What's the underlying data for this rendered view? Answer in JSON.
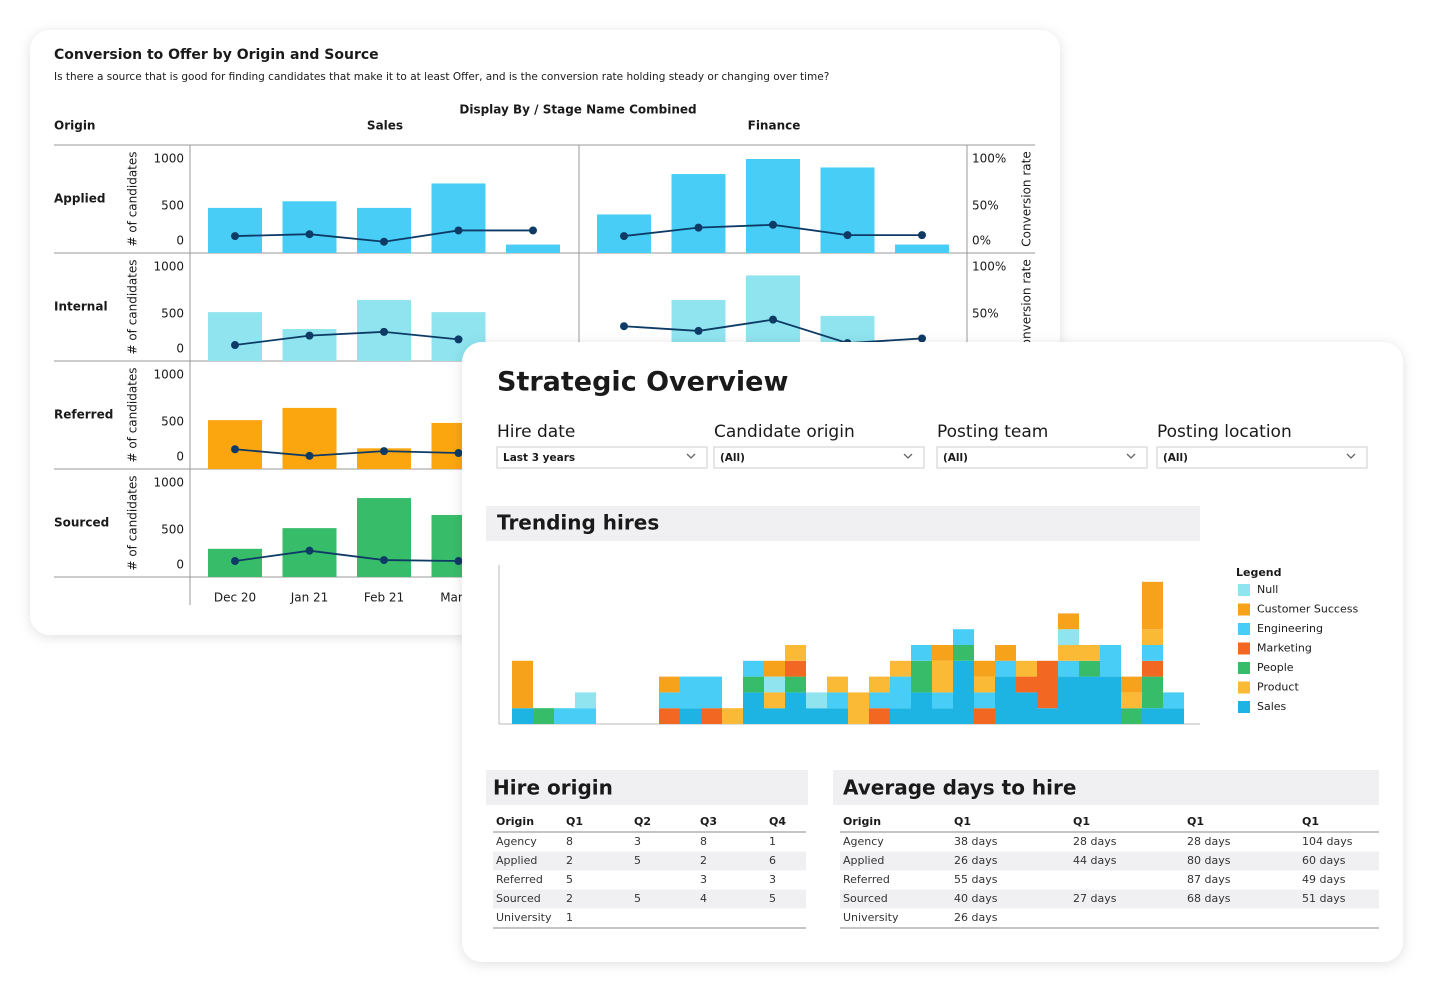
{
  "conversion_card": {
    "title": "Conversion to Offer by Origin and Source",
    "subtitle": "Is there a source that is good for finding candidates that make it to at least Offer, and is the conversion rate holding steady or changing over time?",
    "display_by": "Display By / Stage Name Combined",
    "origin_header": "Origin"
  },
  "chart_data": [
    {
      "type": "combo",
      "columns": [
        "Sales",
        "Finance"
      ],
      "categories": [
        "Dec 20",
        "Jan 21",
        "Feb 21",
        "March",
        null
      ],
      "y_label": "# of candidates",
      "y2_label": "Conversion rate",
      "ylim": [
        0,
        1000
      ],
      "yticks": [
        0,
        500,
        1000
      ],
      "y2lim": [
        0,
        100
      ],
      "y2ticks": [
        {
          "value": 0,
          "label": "0%"
        },
        {
          "value": 50,
          "label": "50%"
        },
        {
          "value": 100,
          "label": "100%"
        }
      ],
      "line_color": "#0d3b66",
      "rows": [
        {
          "name": "Applied",
          "color": "#48cdf6",
          "panels": [
            {
              "values": [
                480,
                550,
                480,
                740,
                90
              ],
              "rates": [
                18,
                20,
                12,
                24,
                24
              ]
            },
            {
              "values": [
                410,
                840,
                1000,
                910,
                90
              ],
              "rates": [
                18,
                27,
                30,
                19,
                19
              ]
            }
          ]
        },
        {
          "name": "Internal",
          "color": "#8fe4ef",
          "panels": [
            {
              "values": [
                520,
                340,
                650,
                520,
                null
              ],
              "rates": [
                17,
                27,
                31,
                23,
                null
              ]
            },
            {
              "values": [
                null,
                650,
                910,
                480,
                null
              ],
              "rates": [
                37,
                32,
                44,
                19,
                24
              ]
            }
          ]
        },
        {
          "name": "Referred",
          "color": "#fca60f",
          "panels": [
            {
              "values": [
                520,
                650,
                220,
                490,
                null
              ],
              "rates": [
                21,
                14,
                19,
                17,
                null
              ]
            }
          ]
        },
        {
          "name": "Sourced",
          "color": "#37bd6a",
          "panels": [
            {
              "values": [
                300,
                520,
                840,
                660,
                null
              ],
              "rates": [
                17,
                28,
                18,
                17,
                null
              ]
            }
          ]
        }
      ]
    },
    {
      "type": "stacked_bar",
      "title": "Trending hires",
      "legend_title": "Legend",
      "ylim": [
        0,
        10
      ],
      "categories": [
        null,
        null,
        null,
        null,
        null,
        null,
        null,
        null,
        null,
        null,
        null,
        null,
        null,
        null,
        null,
        null,
        null,
        null,
        null,
        null,
        null,
        null,
        null,
        null,
        null,
        null,
        null,
        null,
        null,
        null,
        null,
        null
      ],
      "series": [
        {
          "name": "Null",
          "color": "#8fe4ef",
          "values": [
            0,
            0,
            0,
            1,
            0,
            0,
            0,
            0,
            0,
            0,
            0,
            0,
            1,
            0,
            1,
            0,
            0,
            0,
            0,
            0,
            0,
            0,
            0,
            0,
            0,
            0,
            1,
            0,
            0,
            0,
            0,
            0
          ]
        },
        {
          "name": "Customer Success",
          "color": "#f7a21b",
          "values": [
            3,
            0,
            0,
            0,
            0,
            0,
            0,
            1,
            0,
            0,
            0,
            0,
            1,
            0,
            0,
            0,
            0,
            0,
            0,
            0,
            1,
            0,
            1,
            1,
            0,
            0,
            1,
            0,
            0,
            1,
            3,
            0
          ]
        },
        {
          "name": "Engineering",
          "color": "#48cdf6",
          "values": [
            0,
            0,
            1,
            1,
            0,
            0,
            0,
            1,
            2,
            2,
            0,
            1,
            0,
            0,
            0,
            1,
            0,
            1,
            2,
            1,
            1,
            1,
            1,
            1,
            0,
            0,
            1,
            0,
            2,
            0,
            1,
            1
          ]
        },
        {
          "name": "Marketing",
          "color": "#f26722",
          "values": [
            0,
            0,
            0,
            0,
            0,
            0,
            0,
            1,
            0,
            1,
            0,
            0,
            0,
            1,
            0,
            0,
            0,
            1,
            0,
            0,
            0,
            0,
            1,
            0,
            1,
            3,
            0,
            0,
            0,
            0,
            1,
            0
          ]
        },
        {
          "name": "People",
          "color": "#37bd6a",
          "values": [
            0,
            1,
            0,
            0,
            0,
            0,
            0,
            0,
            0,
            0,
            0,
            1,
            0,
            1,
            0,
            0,
            0,
            0,
            0,
            2,
            0,
            1,
            0,
            0,
            0,
            0,
            0,
            1,
            0,
            1,
            2,
            0
          ]
        },
        {
          "name": "Product",
          "color": "#fbba35",
          "values": [
            0,
            0,
            0,
            0,
            0,
            0,
            0,
            0,
            0,
            0,
            1,
            0,
            1,
            1,
            0,
            1,
            2,
            1,
            1,
            0,
            2,
            0,
            1,
            0,
            1,
            0,
            1,
            1,
            0,
            1,
            1,
            0
          ]
        },
        {
          "name": "Sales",
          "color": "#1db4e4",
          "values": [
            1,
            0,
            0,
            0,
            0,
            0,
            0,
            0,
            1,
            0,
            0,
            2,
            1,
            2,
            1,
            1,
            0,
            0,
            1,
            2,
            1,
            4,
            0,
            3,
            2,
            1,
            3,
            3,
            3,
            0,
            1,
            1
          ]
        }
      ]
    }
  ],
  "overview": {
    "title": "Strategic Overview",
    "filters": [
      {
        "label": "Hire date",
        "value": "Last 3 years"
      },
      {
        "label": "Candidate origin",
        "value": "(All)"
      },
      {
        "label": "Posting team",
        "value": "(All)"
      },
      {
        "label": "Posting location",
        "value": "(All)"
      }
    ],
    "hire_origin": {
      "title": "Hire origin",
      "columns": [
        "Origin",
        "Q1",
        "Q2",
        "Q3",
        "Q4"
      ],
      "rows": [
        [
          "Agency",
          8,
          3,
          8,
          1
        ],
        [
          "Applied",
          2,
          5,
          2,
          6
        ],
        [
          "Referred",
          5,
          null,
          3,
          3
        ],
        [
          "Sourced",
          2,
          5,
          4,
          5
        ],
        [
          "University",
          1,
          null,
          null,
          null
        ]
      ]
    },
    "days_to_hire": {
      "title": "Average days to hire",
      "columns": [
        "Origin",
        "Q1",
        "Q1",
        "Q1",
        "Q1"
      ],
      "rows": [
        [
          "Agency",
          "38 days",
          "28 days",
          "28 days",
          "104 days"
        ],
        [
          "Applied",
          "26 days",
          "44 days",
          "80 days",
          "60 days"
        ],
        [
          "Referred",
          "55 days",
          null,
          "87 days",
          "49 days"
        ],
        [
          "Sourced",
          "40 days",
          "27 days",
          "68 days",
          "51 days"
        ],
        [
          "University",
          "26 days",
          null,
          null,
          null
        ]
      ]
    }
  }
}
